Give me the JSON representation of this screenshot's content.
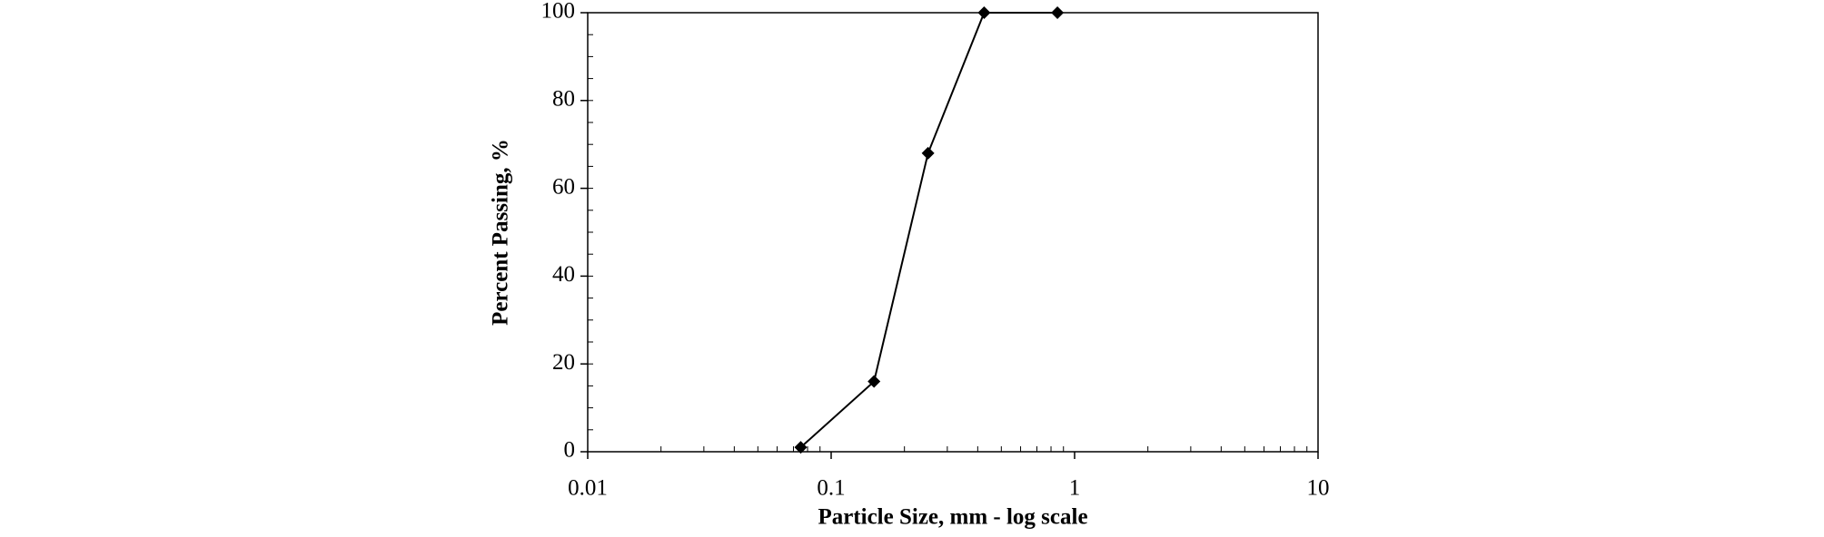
{
  "chart_data": {
    "type": "line",
    "xlabel": "Particle Size, mm - log scale",
    "ylabel": "Percent Passing, %",
    "x": [
      0.075,
      0.15,
      0.25,
      0.425,
      0.85
    ],
    "series": [
      {
        "color": "#000000",
        "values": [
          1,
          16,
          68,
          100,
          100
        ]
      }
    ],
    "xlim": [
      0.01,
      10
    ],
    "xticks": [
      0.01,
      0.1,
      1,
      10
    ],
    "xscale": "log",
    "ylim": [
      0,
      100
    ],
    "yticks": [
      0,
      20,
      40,
      60,
      80,
      100
    ]
  }
}
